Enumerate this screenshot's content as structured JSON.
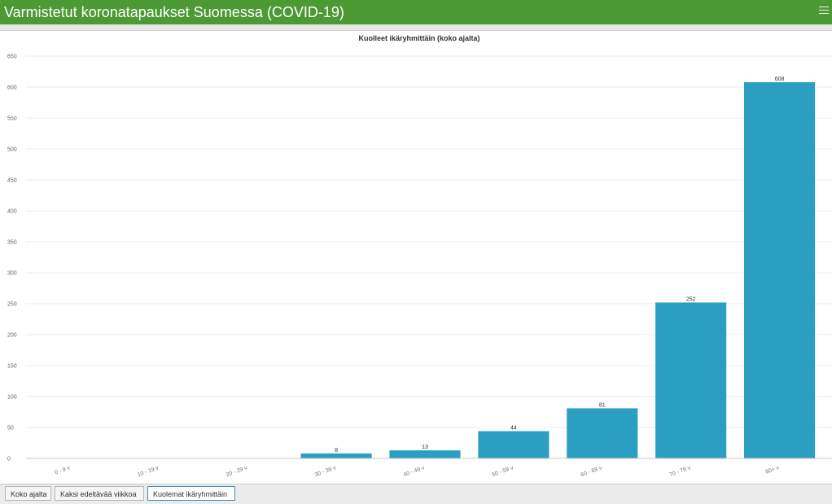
{
  "header": {
    "title": "Varmistetut koronatapaukset Suomessa (COVID-19)",
    "menu_icon": "hamburger-menu-icon"
  },
  "tabs": [
    {
      "label": "Koko ajalta",
      "active": false
    },
    {
      "label": "Kaksi edeltävää viikkoa",
      "active": false
    },
    {
      "label": "Kuolemat ikäryhmittäin",
      "active": true
    }
  ],
  "colors": {
    "header": "#4c9a34",
    "bar": "#2a9fc1"
  },
  "chart_data": {
    "type": "bar",
    "title": "Kuolleet ikäryhmittäin (koko ajalta)",
    "categories": [
      "0 - 9 v",
      "10 - 19 v",
      "20 - 29 v",
      "30 - 39 v",
      "40 - 49 v",
      "50 - 59 v",
      "60 - 69 v",
      "70 - 79 v",
      "80+ v"
    ],
    "values": [
      0,
      0,
      0,
      8,
      13,
      44,
      81,
      252,
      608
    ],
    "data_labels": [
      "",
      "",
      "",
      "8",
      "13",
      "44",
      "81",
      "252",
      "608"
    ],
    "yticks": [
      0,
      50,
      100,
      150,
      200,
      250,
      300,
      350,
      400,
      450,
      500,
      550,
      600,
      650
    ],
    "ylim": [
      0,
      650
    ],
    "xlabel": "",
    "ylabel": "",
    "grid": true
  }
}
